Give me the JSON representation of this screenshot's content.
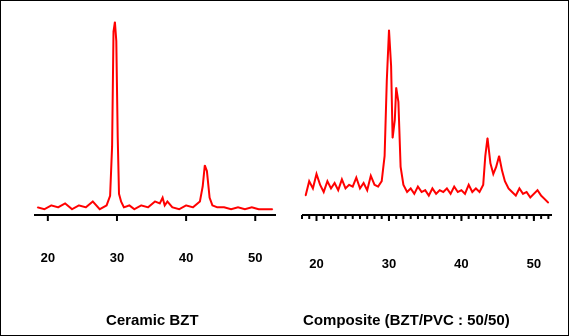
{
  "chart_data": [
    {
      "type": "line",
      "caption": "Ceramic BZT",
      "line_color": "#ff0000",
      "xlim": [
        18,
        53
      ],
      "ylim": [
        0,
        100
      ],
      "xticks": [
        20,
        30,
        40,
        50
      ],
      "grid": false,
      "legend": "none",
      "series": [
        {
          "x": [
            18.5,
            19.5,
            20.5,
            21.5,
            22.5,
            23.5,
            24.5,
            25.5,
            26.5,
            27.5,
            28.5,
            29.0,
            29.3,
            29.5,
            29.7,
            29.9,
            30.1,
            30.3,
            30.6,
            31.0,
            31.8,
            32.5,
            33.5,
            34.5,
            35.5,
            36.2,
            36.6,
            36.9,
            37.3,
            38.0,
            39.0,
            40.0,
            41.0,
            42.0,
            42.4,
            42.7,
            43.0,
            43.4,
            43.8,
            44.5,
            45.5,
            46.5,
            47.5,
            48.5,
            49.5,
            50.5,
            51.5,
            52.5
          ],
          "y": [
            3,
            2,
            4,
            3,
            5,
            2,
            4,
            3,
            6,
            2,
            4,
            9,
            35,
            95,
            100,
            90,
            40,
            10,
            6,
            3,
            4,
            2,
            4,
            3,
            6,
            5,
            8,
            4,
            6,
            3,
            2,
            4,
            3,
            6,
            14,
            25,
            22,
            8,
            4,
            3,
            3,
            2,
            3,
            2,
            3,
            2,
            2,
            2
          ]
        }
      ]
    },
    {
      "type": "line",
      "caption": "Composite (BZT/PVC : 50/50)",
      "line_color": "#ff0000",
      "xlim": [
        18,
        52.5
      ],
      "ylim": [
        0,
        100
      ],
      "xticks": [
        20,
        30,
        40,
        50
      ],
      "grid": false,
      "legend": "none",
      "series": [
        {
          "x": [
            18.5,
            19.0,
            19.5,
            20.0,
            20.5,
            21.0,
            21.5,
            22.0,
            22.5,
            23.0,
            23.5,
            24.0,
            24.5,
            25.0,
            25.5,
            26.0,
            26.5,
            27.0,
            27.5,
            28.0,
            28.5,
            29.0,
            29.4,
            29.7,
            30.0,
            30.3,
            30.5,
            30.8,
            31.0,
            31.3,
            31.6,
            32.0,
            32.5,
            33.0,
            33.5,
            34.0,
            34.5,
            35.0,
            35.5,
            36.0,
            36.5,
            37.0,
            37.5,
            38.0,
            38.5,
            39.0,
            39.5,
            40.0,
            40.5,
            41.0,
            41.5,
            42.0,
            42.5,
            43.0,
            43.3,
            43.6,
            44.0,
            44.4,
            44.8,
            45.2,
            45.6,
            46.0,
            46.5,
            47.0,
            47.5,
            48.0,
            48.5,
            49.0,
            49.5,
            50.0,
            50.5,
            51.0,
            51.5,
            52.0
          ],
          "y": [
            8,
            16,
            12,
            20,
            14,
            10,
            16,
            12,
            15,
            11,
            17,
            12,
            14,
            13,
            18,
            12,
            15,
            11,
            19,
            14,
            13,
            16,
            30,
            72,
            100,
            80,
            40,
            50,
            68,
            60,
            24,
            14,
            10,
            12,
            9,
            13,
            10,
            11,
            8,
            12,
            9,
            11,
            10,
            12,
            9,
            13,
            10,
            11,
            9,
            14,
            10,
            12,
            10,
            14,
            30,
            40,
            26,
            20,
            24,
            30,
            22,
            16,
            12,
            10,
            8,
            12,
            9,
            10,
            7,
            9,
            11,
            8,
            6,
            4
          ]
        }
      ]
    }
  ]
}
